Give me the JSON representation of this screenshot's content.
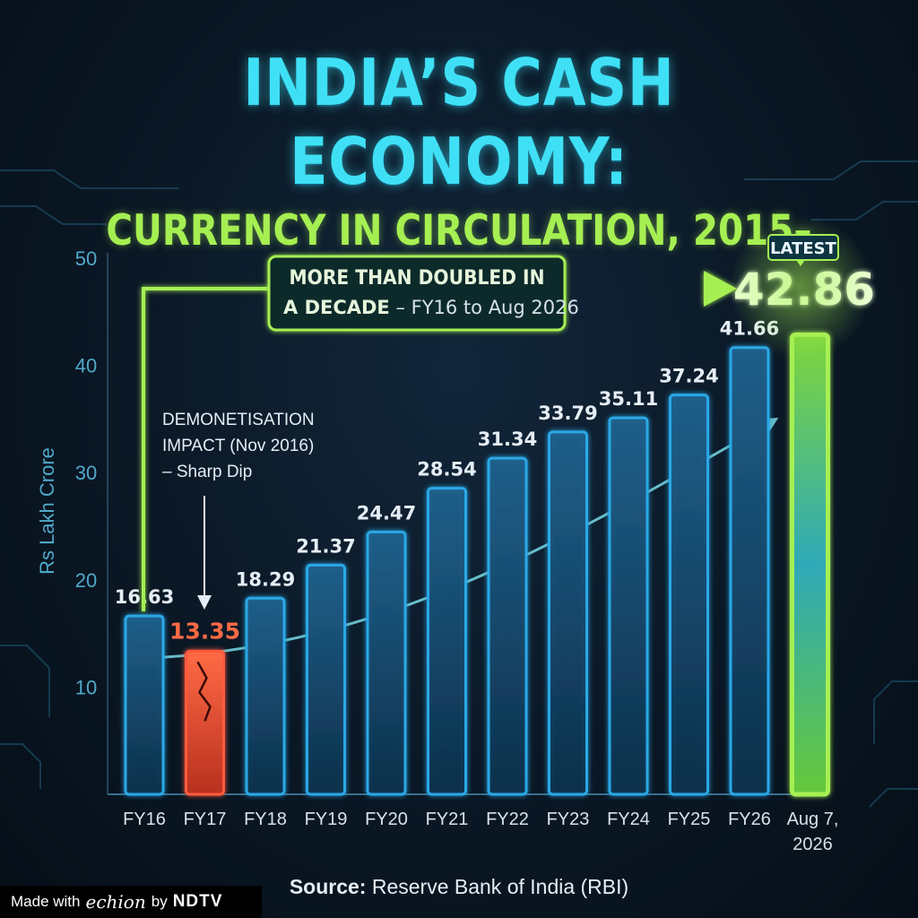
{
  "header": {
    "title": "INDIA’S CASH ECONOMY:",
    "subtitle": "CURRENCY IN CIRCULATION, 2015–2026"
  },
  "chart_data": {
    "type": "bar",
    "title": "INDIA’S CASH ECONOMY:",
    "subtitle": "CURRENCY IN CIRCULATION, 2015–2026",
    "ylabel": "Rs Lakh Crore",
    "xlabel": "",
    "ylim": [
      0,
      50
    ],
    "yticks": [
      10,
      20,
      30,
      40,
      50
    ],
    "categories": [
      "FY16",
      "FY17",
      "FY18",
      "FY19",
      "FY20",
      "FY21",
      "FY22",
      "FY23",
      "FY24",
      "FY25",
      "FY26",
      "Aug 7, 2026"
    ],
    "values": [
      16.63,
      13.35,
      18.29,
      21.37,
      24.47,
      28.54,
      31.34,
      33.79,
      35.11,
      37.24,
      41.66,
      42.86
    ],
    "value_labels": [
      "16.63",
      "13.35",
      "18.29",
      "21.37",
      "24.47",
      "28.54",
      "31.34",
      "33.79",
      "35.11",
      "37.24",
      "41.66",
      "42.86"
    ],
    "annotations": {
      "demonetisation": [
        "DEMONETISATION",
        "IMPACT (Nov 2016)",
        "– Sharp Dip"
      ],
      "doubled_bold1": "MORE THAN DOUBLED IN",
      "doubled_bold2": "A DECADE",
      "doubled_rest": " – FY16 to Aug 2026",
      "latest_badge": "LATEST"
    },
    "colors": {
      "bar": "#2aa8e6",
      "dip": "#ff5a3c",
      "latest": "#a6ef52",
      "axis": "#3a6f8e"
    }
  },
  "footer": {
    "source_label": "Source:",
    "source_text": " Reserve Bank of India (RBI)",
    "made_with": "Made with",
    "echion": "echion",
    "by": "by",
    "ndtv": "NDTV"
  }
}
